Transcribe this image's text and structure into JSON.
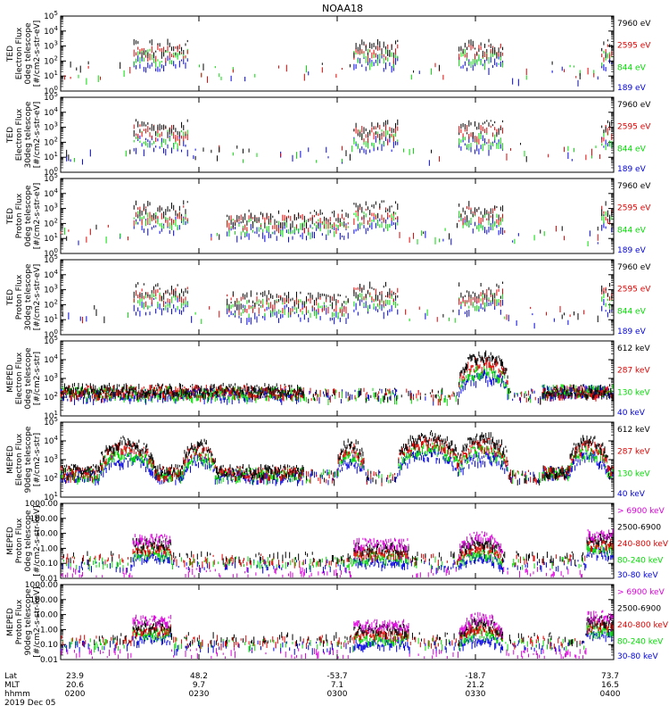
{
  "title": "NOAA18",
  "colors": {
    "black": "#000000",
    "red": "#e00000",
    "green": "#00dd00",
    "blue": "#0000dd",
    "magenta": "#dd00dd"
  },
  "footer": {
    "row_labels": [
      "Lat",
      "MLT",
      "hhmm"
    ],
    "date": "2019 Dec 05",
    "columns": [
      {
        "lat": "23.9",
        "mlt": "20.6",
        "hhmm": "0200"
      },
      {
        "lat": "48.2",
        "mlt": "9.7",
        "hhmm": "0230"
      },
      {
        "lat": "-53.7",
        "mlt": "7.1",
        "hhmm": "0300"
      },
      {
        "lat": "-18.7",
        "mlt": "21.2",
        "hhmm": "0330"
      },
      {
        "lat": "73.7",
        "mlt": "16.5",
        "hhmm": "0400"
      }
    ]
  },
  "chart_data": [
    {
      "type": "scatter",
      "ylabel": [
        "TED",
        "Electron Flux",
        "0deg telescope",
        "[#/cm2-s-str-eV]"
      ],
      "y_scale": "log",
      "ylim": [
        1,
        100000
      ],
      "y_ticks": [
        "10^0",
        "10^1",
        "10^2",
        "10^3",
        "10^4",
        "10^5"
      ],
      "x_ticks": [
        "0200",
        "0230",
        "0300",
        "0330",
        "0400"
      ],
      "legend": [
        {
          "label": "7960 eV",
          "color": "black"
        },
        {
          "label": "2595 eV",
          "color": "red"
        },
        {
          "label": "844 eV",
          "color": "green"
        },
        {
          "label": "189 eV",
          "color": "blue"
        }
      ]
    },
    {
      "type": "scatter",
      "ylabel": [
        "TED",
        "Electron Flux",
        "30deg telescope",
        "[#/cm2-s-str-eV]"
      ],
      "y_scale": "log",
      "ylim": [
        1,
        100000
      ],
      "y_ticks": [
        "10^0",
        "10^1",
        "10^2",
        "10^3",
        "10^4",
        "10^5"
      ],
      "x_ticks": [
        "0200",
        "0230",
        "0300",
        "0330",
        "0400"
      ],
      "legend": [
        {
          "label": "7960 eV",
          "color": "black"
        },
        {
          "label": "2595 eV",
          "color": "red"
        },
        {
          "label": "844 eV",
          "color": "green"
        },
        {
          "label": "189 eV",
          "color": "blue"
        }
      ]
    },
    {
      "type": "scatter",
      "ylabel": [
        "TED",
        "Proton Flux",
        "0deg telescope",
        "[#/cm2-s-str-eV]"
      ],
      "y_scale": "log",
      "ylim": [
        1,
        100000
      ],
      "y_ticks": [
        "10^0",
        "10^1",
        "10^2",
        "10^3",
        "10^4",
        "10^5"
      ],
      "x_ticks": [
        "0200",
        "0230",
        "0300",
        "0330",
        "0400"
      ],
      "legend": [
        {
          "label": "7960 eV",
          "color": "black"
        },
        {
          "label": "2595 eV",
          "color": "red"
        },
        {
          "label": "844 eV",
          "color": "green"
        },
        {
          "label": "189 eV",
          "color": "blue"
        }
      ]
    },
    {
      "type": "scatter",
      "ylabel": [
        "TED",
        "Proton Flux",
        "30deg telescope",
        "[#/cm2-s-str-eV]"
      ],
      "y_scale": "log",
      "ylim": [
        1,
        100000
      ],
      "y_ticks": [
        "10^0",
        "10^1",
        "10^2",
        "10^3",
        "10^4",
        "10^5"
      ],
      "x_ticks": [
        "0200",
        "0230",
        "0300",
        "0330",
        "0400"
      ],
      "legend": [
        {
          "label": "7960 eV",
          "color": "black"
        },
        {
          "label": "2595 eV",
          "color": "red"
        },
        {
          "label": "844 eV",
          "color": "green"
        },
        {
          "label": "189 eV",
          "color": "blue"
        }
      ]
    },
    {
      "type": "scatter",
      "ylabel": [
        "MEPED",
        "Electron Flux",
        "0deg telescope",
        "[#/cm2-s-str]"
      ],
      "y_scale": "log",
      "ylim": [
        10,
        100000
      ],
      "y_ticks": [
        "10^1",
        "10^2",
        "10^3",
        "10^4",
        "10^5"
      ],
      "x_ticks": [
        "0200",
        "0230",
        "0300",
        "0330",
        "0400"
      ],
      "legend": [
        {
          "label": "612 keV",
          "color": "black"
        },
        {
          "label": "287 keV",
          "color": "red"
        },
        {
          "label": "130 keV",
          "color": "green"
        },
        {
          "label": "40 keV",
          "color": "blue"
        }
      ]
    },
    {
      "type": "scatter",
      "ylabel": [
        "MEPED",
        "Electron Flux",
        "90deg telescope",
        "[#/cm2-s-str]"
      ],
      "y_scale": "log",
      "ylim": [
        10,
        100000
      ],
      "y_ticks": [
        "10^1",
        "10^2",
        "10^3",
        "10^4",
        "10^5"
      ],
      "x_ticks": [
        "0200",
        "0230",
        "0300",
        "0330",
        "0400"
      ],
      "legend": [
        {
          "label": "612 keV",
          "color": "black"
        },
        {
          "label": "287 keV",
          "color": "red"
        },
        {
          "label": "130 keV",
          "color": "green"
        },
        {
          "label": "40 keV",
          "color": "blue"
        }
      ]
    },
    {
      "type": "scatter",
      "ylabel": [
        "MEPED",
        "Proton Flux",
        "0deg telescope",
        "[#/cm2-s-str-keV]"
      ],
      "y_scale": "log",
      "ylim": [
        0.01,
        1000
      ],
      "y_ticks": [
        "0.01",
        "0.10",
        "1.00",
        "10.00",
        "100.00",
        "1000.00"
      ],
      "x_ticks": [
        "0200",
        "0230",
        "0300",
        "0330",
        "0400"
      ],
      "legend": [
        {
          "label": "> 6900 keV",
          "color": "magenta"
        },
        {
          "label": "2500-6900",
          "color": "black"
        },
        {
          "label": "240-800 keV",
          "color": "red"
        },
        {
          "label": "80-240 keV",
          "color": "green"
        },
        {
          "label": "30-80 keV",
          "color": "blue"
        }
      ]
    },
    {
      "type": "scatter",
      "ylabel": [
        "MEPED",
        "Proton Flux",
        "90deg telescope",
        "[#/cm2-s-str-keV]"
      ],
      "y_scale": "log",
      "ylim": [
        0.01,
        1000
      ],
      "y_ticks": [
        "0.01",
        "0.10",
        "1.00",
        "10.00",
        "100.00",
        "1000.00"
      ],
      "x_ticks": [
        "0200",
        "0230",
        "0300",
        "0330",
        "0400"
      ],
      "legend": [
        {
          "label": "> 6900 keV",
          "color": "magenta"
        },
        {
          "label": "2500-6900",
          "color": "black"
        },
        {
          "label": "240-800 keV",
          "color": "red"
        },
        {
          "label": "80-240 keV",
          "color": "green"
        },
        {
          "label": "30-80 keV",
          "color": "blue"
        }
      ]
    }
  ]
}
